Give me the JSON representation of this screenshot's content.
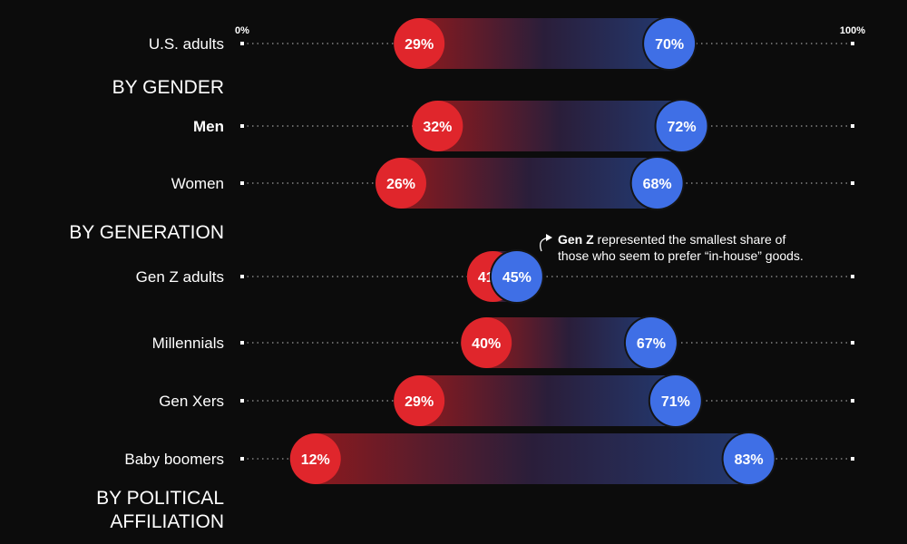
{
  "chart_data": {
    "type": "dumbbell",
    "axis": {
      "min_label": "0%",
      "max_label": "100%",
      "xlim": [
        0,
        100
      ]
    },
    "colors": {
      "low": "#e0262c",
      "high": "#3f6fe6",
      "background": "#0c0c0c"
    },
    "sections": [
      {
        "heading": "",
        "rows": [
          {
            "label": "U.S. adults",
            "low": 29,
            "high": 70
          }
        ]
      },
      {
        "heading": "BY GENDER",
        "rows": [
          {
            "label": "Men",
            "low": 32,
            "high": 72
          },
          {
            "label": "Women",
            "low": 26,
            "high": 68
          }
        ]
      },
      {
        "heading": "BY GENERATION",
        "rows": [
          {
            "label": "Gen Z adults",
            "low": 41,
            "high": 45
          },
          {
            "label": "Millennials",
            "low": 40,
            "high": 67
          },
          {
            "label": "Gen Xers",
            "low": 29,
            "high": 71
          },
          {
            "label": "Baby boomers",
            "low": 12,
            "high": 83
          }
        ]
      },
      {
        "heading": "BY POLITICAL AFFILIATION",
        "heading_lines": [
          "BY POLITICAL",
          "AFFILIATION"
        ],
        "rows": []
      }
    ],
    "annotation": {
      "bold": "Gen Z",
      "text_line1": " represented the smallest share of",
      "text_line2": "those who seem to prefer “in-house” goods."
    }
  }
}
